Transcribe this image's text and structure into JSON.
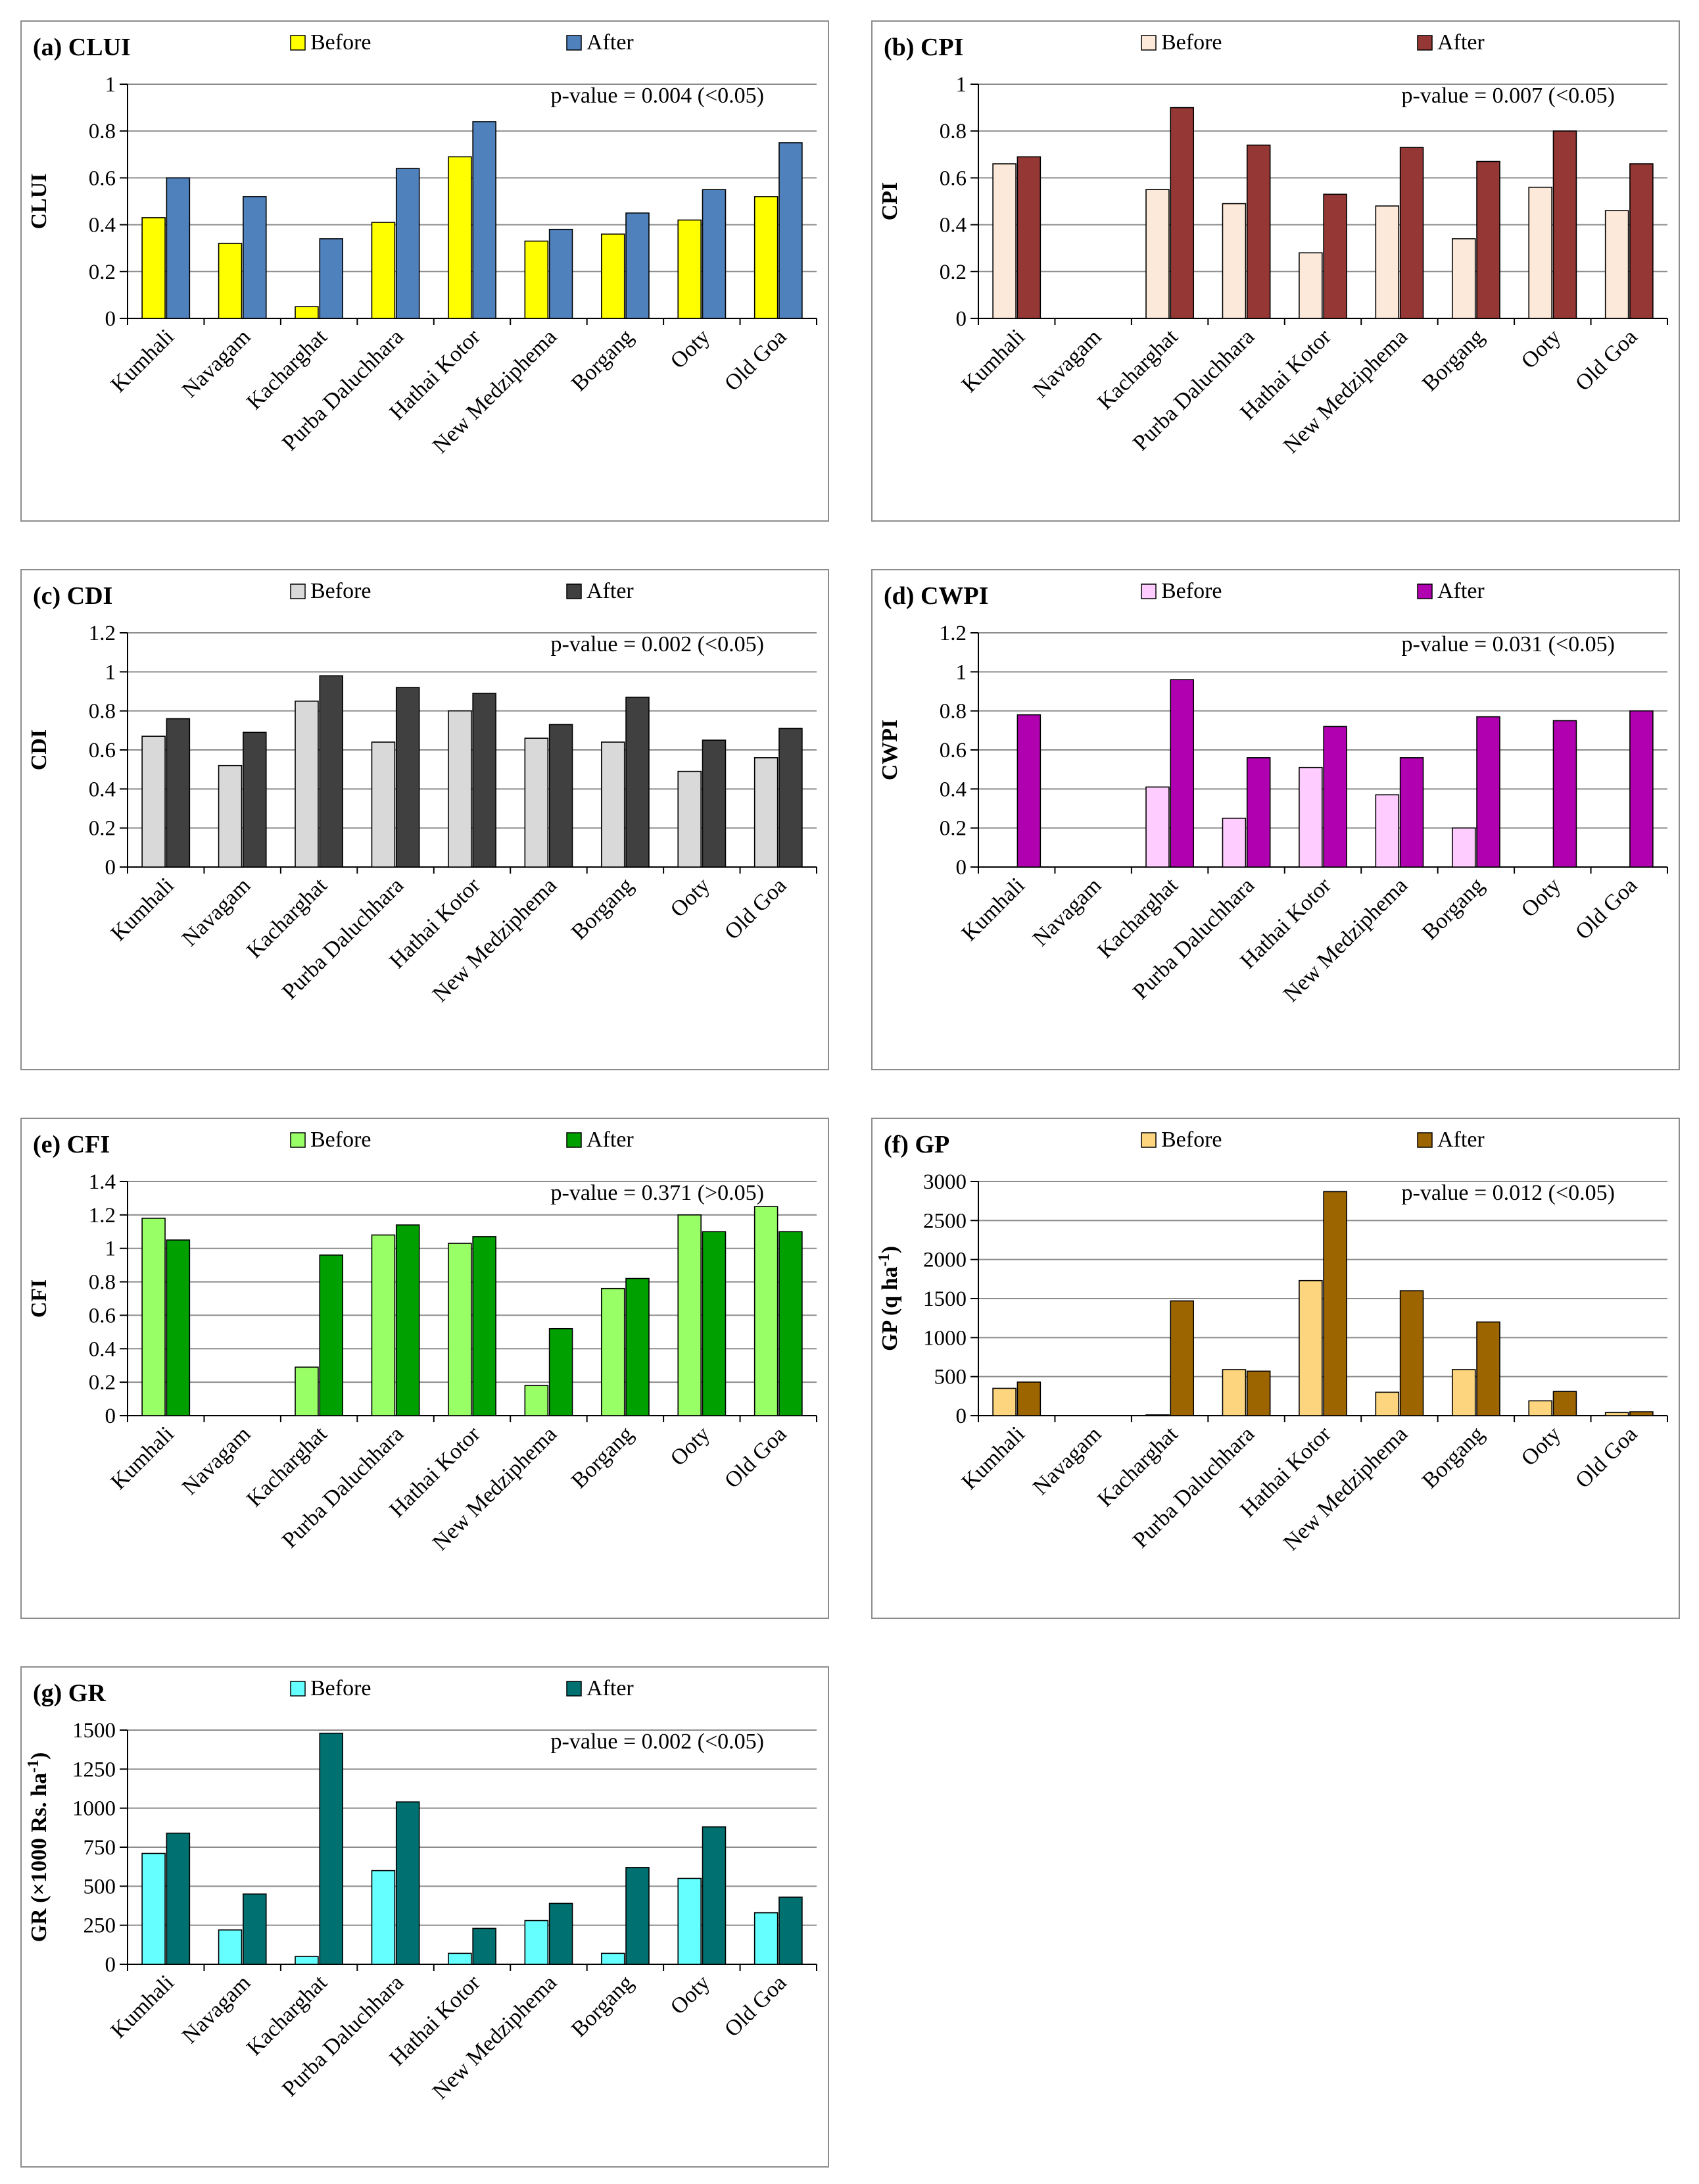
{
  "categories": [
    "Kumhali",
    "Navagam",
    "Kacharghat",
    "Purba Daluchhara",
    "Hathai Kotor",
    "New Medziphema",
    "Borgang",
    "Ooty",
    "Old Goa"
  ],
  "chart_data": [
    {
      "type": "bar",
      "title": "(a) CLUI",
      "ylabel": "CLUI",
      "ylim": [
        0,
        1
      ],
      "yticks": [
        0,
        0.2,
        0.4,
        0.6,
        0.8,
        1
      ],
      "yticklabels": [
        "0",
        "0.2",
        "0.4",
        "0.6",
        "0.8",
        "1"
      ],
      "annotation": "p-value = 0.004 (<0.05)",
      "series": [
        {
          "name": "Before",
          "color": "#ffff00",
          "values": [
            0.43,
            0.32,
            0.05,
            0.41,
            0.69,
            0.33,
            0.36,
            0.42,
            0.52
          ]
        },
        {
          "name": "After",
          "color": "#4f81bd",
          "values": [
            0.6,
            0.52,
            0.34,
            0.64,
            0.84,
            0.38,
            0.45,
            0.55,
            0.75
          ]
        }
      ]
    },
    {
      "type": "bar",
      "title": "(b) CPI",
      "ylabel": "CPI",
      "ylim": [
        0,
        1
      ],
      "yticks": [
        0,
        0.2,
        0.4,
        0.6,
        0.8,
        1
      ],
      "yticklabels": [
        "0",
        "0.2",
        "0.4",
        "0.6",
        "0.8",
        "1"
      ],
      "annotation": "p-value = 0.007 (<0.05)",
      "series": [
        {
          "name": "Before",
          "color": "#fde9d9",
          "values": [
            0.66,
            0,
            0.55,
            0.49,
            0.28,
            0.48,
            0.34,
            0.56,
            0.46
          ]
        },
        {
          "name": "After",
          "color": "#953735",
          "values": [
            0.69,
            0,
            0.9,
            0.74,
            0.53,
            0.73,
            0.67,
            0.8,
            0.66
          ]
        }
      ]
    },
    {
      "type": "bar",
      "title": "(c) CDI",
      "ylabel": "CDI",
      "ylim": [
        0,
        1.2
      ],
      "yticks": [
        0,
        0.2,
        0.4,
        0.6,
        0.8,
        1,
        1.2
      ],
      "yticklabels": [
        "0",
        "0.2",
        "0.4",
        "0.6",
        "0.8",
        "1",
        "1.2"
      ],
      "annotation": "p-value = 0.002 (<0.05)",
      "series": [
        {
          "name": "Before",
          "color": "#d9d9d9",
          "values": [
            0.67,
            0.52,
            0.85,
            0.64,
            0.8,
            0.66,
            0.64,
            0.49,
            0.56
          ]
        },
        {
          "name": "After",
          "color": "#404040",
          "values": [
            0.76,
            0.69,
            0.98,
            0.92,
            0.89,
            0.73,
            0.87,
            0.65,
            0.71
          ]
        }
      ]
    },
    {
      "type": "bar",
      "title": "(d) CWPI",
      "ylabel": "CWPI",
      "ylim": [
        0,
        1.2
      ],
      "yticks": [
        0,
        0.2,
        0.4,
        0.6,
        0.8,
        1,
        1.2
      ],
      "yticklabels": [
        "0",
        "0.2",
        "0.4",
        "0.6",
        "0.8",
        "1",
        "1.2"
      ],
      "annotation": "p-value = 0.031 (<0.05)",
      "series": [
        {
          "name": "Before",
          "color": "#ffccff",
          "values": [
            0,
            0,
            0.41,
            0.25,
            0.51,
            0.37,
            0.2,
            0,
            0
          ]
        },
        {
          "name": "After",
          "color": "#b000b0",
          "values": [
            0.78,
            0,
            0.96,
            0.56,
            0.72,
            0.56,
            0.77,
            0.75,
            0.8
          ]
        }
      ]
    },
    {
      "type": "bar",
      "title": "(e) CFI",
      "ylabel": "CFI",
      "ylim": [
        0,
        1.4
      ],
      "yticks": [
        0,
        0.2,
        0.4,
        0.6,
        0.8,
        1,
        1.2,
        1.4
      ],
      "yticklabels": [
        "0",
        "0.2",
        "0.4",
        "0.6",
        "0.8",
        "1",
        "1.2",
        "1.4"
      ],
      "annotation": "p-value = 0.371 (>0.05)",
      "series": [
        {
          "name": "Before",
          "color": "#99ff66",
          "values": [
            1.18,
            0,
            0.29,
            1.08,
            1.03,
            0.18,
            0.76,
            1.2,
            1.25
          ]
        },
        {
          "name": "After",
          "color": "#00a000",
          "values": [
            1.05,
            0,
            0.96,
            1.14,
            1.07,
            0.52,
            0.82,
            1.1,
            1.1
          ]
        }
      ]
    },
    {
      "type": "bar",
      "title": "(f) GP",
      "ylabel": "GP (q ha",
      "ylabel_sup": "-1",
      "ylabel_tail": ")",
      "ylim": [
        0,
        3000
      ],
      "yticks": [
        0,
        500,
        1000,
        1500,
        2000,
        2500,
        3000
      ],
      "yticklabels": [
        "0",
        "500",
        "1000",
        "1500",
        "2000",
        "2500",
        "3000"
      ],
      "annotation": "p-value = 0.012 (<0.05)",
      "series": [
        {
          "name": "Before",
          "color": "#fcd57e",
          "values": [
            350,
            0,
            10,
            590,
            1730,
            300,
            590,
            190,
            40
          ]
        },
        {
          "name": "After",
          "color": "#9c6500",
          "values": [
            430,
            0,
            1470,
            570,
            2870,
            1600,
            1200,
            310,
            50
          ]
        }
      ]
    },
    {
      "type": "bar",
      "title": "(g) GR",
      "ylabel": "GR (×1000 Rs. ha",
      "ylabel_sup": "-1",
      "ylabel_tail": ")",
      "ylim": [
        0,
        1500
      ],
      "yticks": [
        0,
        250,
        500,
        750,
        1000,
        1250,
        1500
      ],
      "yticklabels": [
        "0",
        "250",
        "500",
        "750",
        "1000",
        "1250",
        "1500"
      ],
      "annotation": "p-value = 0.002 (<0.05)",
      "series": [
        {
          "name": "Before",
          "color": "#66ffff",
          "values": [
            710,
            220,
            50,
            600,
            70,
            280,
            70,
            550,
            330
          ]
        },
        {
          "name": "After",
          "color": "#007070",
          "values": [
            840,
            450,
            1480,
            1040,
            230,
            390,
            620,
            880,
            430
          ]
        }
      ]
    }
  ]
}
